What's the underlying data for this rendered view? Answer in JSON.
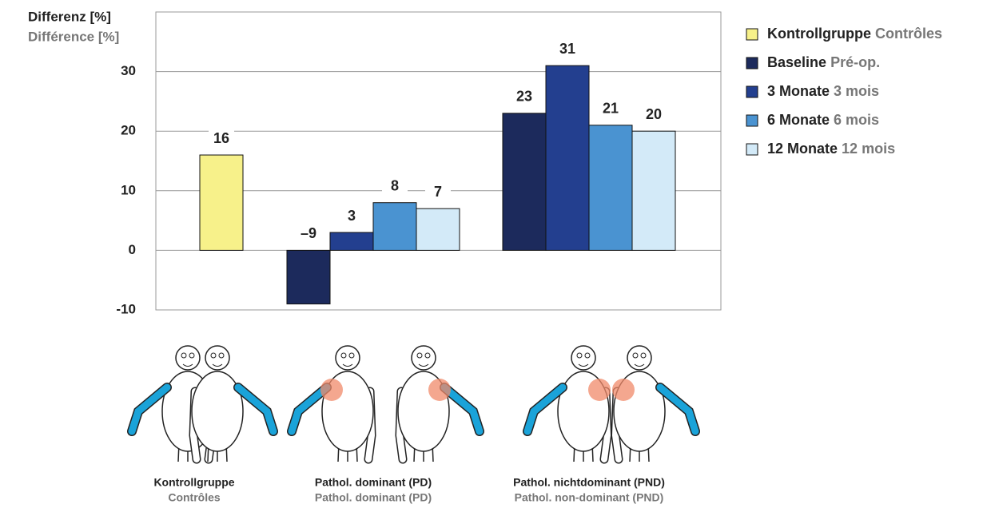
{
  "chart_data": {
    "type": "bar",
    "y_label": "Differenz [%]",
    "y_label_secondary": "Différence [%]",
    "categories": [
      "Kontrollgruppe",
      "Pathol. dominant (PD)",
      "Pathol. nichtdominant (PND)"
    ],
    "categories_secondary": [
      "Contrôles",
      "Pathol. dominant (PD)",
      "Pathol. non-dominant (PND)"
    ],
    "series": [
      {
        "name": "Kontrollgruppe",
        "name_secondary": "Contrôles",
        "color": "#f7f18a",
        "values": [
          16,
          null,
          null
        ]
      },
      {
        "name": "Baseline",
        "name_secondary": "Pré-op.",
        "color": "#1c2a5c",
        "values": [
          null,
          -9,
          23
        ],
        "value_labels": [
          null,
          "–9",
          "23"
        ]
      },
      {
        "name": "3 Monate",
        "name_secondary": "3 mois",
        "color": "#233f8f",
        "values": [
          null,
          3,
          31
        ]
      },
      {
        "name": "6 Monate",
        "name_secondary": "6 mois",
        "color": "#4a93d1",
        "values": [
          null,
          8,
          21
        ]
      },
      {
        "name": "12 Monate",
        "name_secondary": "12 mois",
        "color": "#d3eaf8",
        "values": [
          null,
          7,
          20
        ]
      }
    ],
    "ylim": [
      -10,
      40
    ],
    "yticks": [
      -10,
      0,
      10,
      20,
      30
    ],
    "grid": true,
    "legend": "right"
  }
}
